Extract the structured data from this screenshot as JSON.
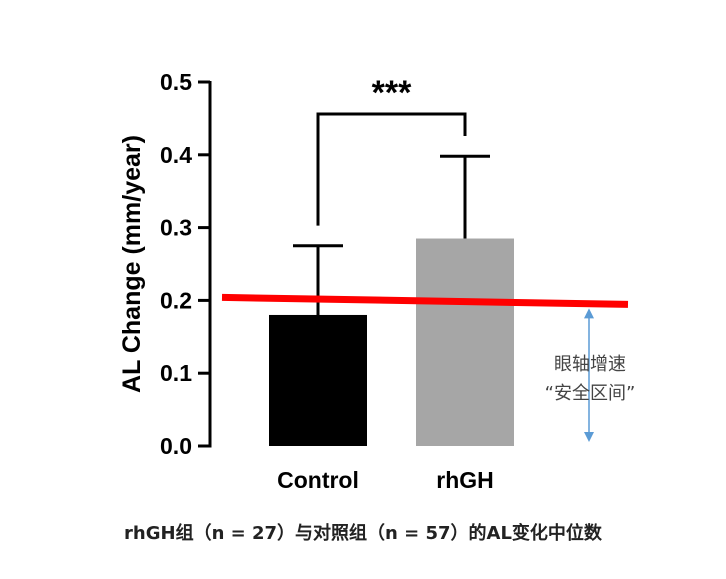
{
  "chart_data": {
    "type": "bar",
    "categories": [
      "Control",
      "rhGH"
    ],
    "values": [
      0.18,
      0.285
    ],
    "error_bars_upper": [
      0.275,
      0.398
    ],
    "bar_colors": [
      "#000000",
      "#a6a6a6"
    ],
    "ylabel": "AL Change (mm/year)",
    "ylim": [
      0,
      0.5
    ],
    "yticks": [
      "0.0",
      "0.1",
      "0.2",
      "0.3",
      "0.4",
      "0.5"
    ],
    "significance": "***",
    "reference_line": {
      "y": 0.2,
      "color": "#ff0000"
    },
    "grid": false
  },
  "annotation": {
    "line1": "眼轴增速",
    "line2": "“安全区间”",
    "arrow_color": "#5b9bd5"
  },
  "caption": "rhGH组（n = 27）与对照组（n = 57）的AL变化中位数"
}
